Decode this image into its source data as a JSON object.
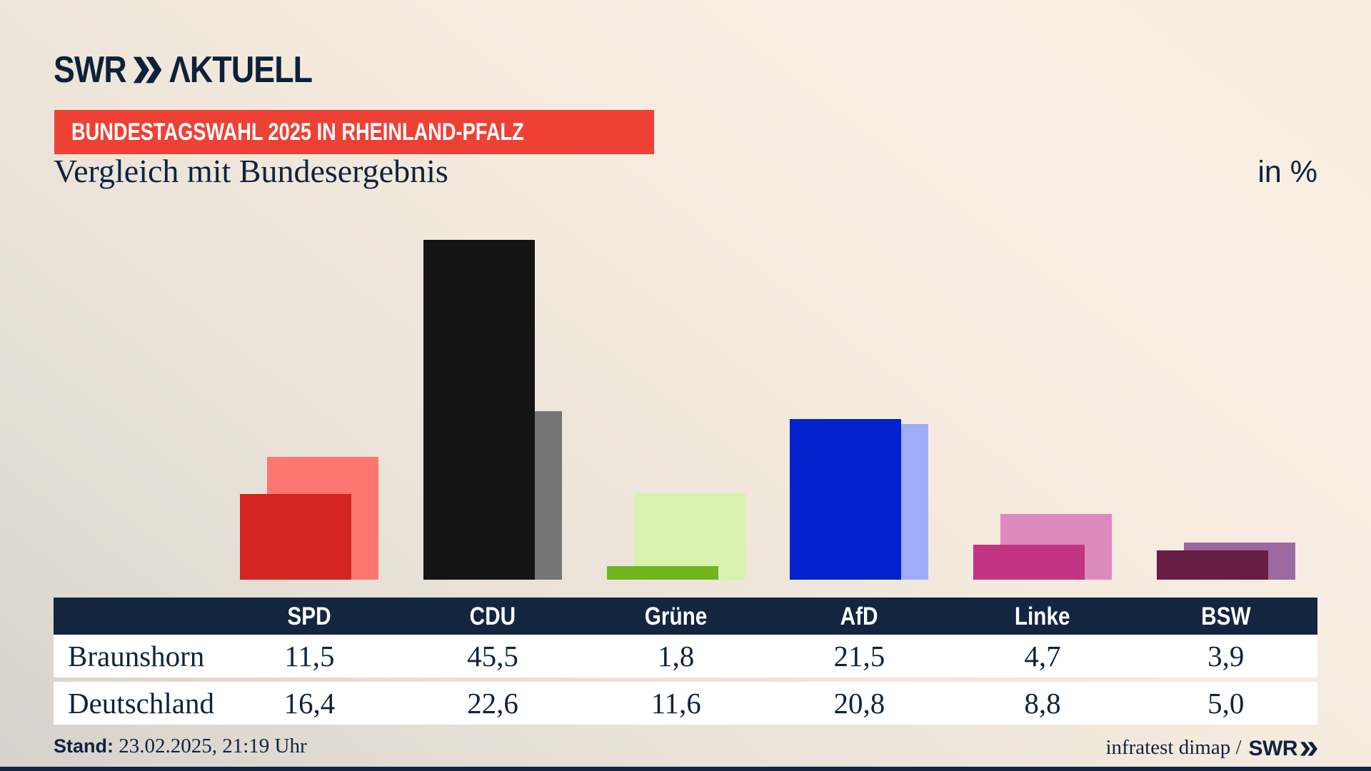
{
  "header": {
    "logo_prefix": "SWR",
    "logo_suffix": "ΛKTUELL",
    "badge": "BUNDESTAGSWAHL 2025 IN RHEINLAND-PFALZ",
    "title": "Vergleich mit Bundesergebnis",
    "unit": "in %"
  },
  "chart_data": {
    "type": "bar",
    "categories": [
      "SPD",
      "CDU",
      "Grüne",
      "AfD",
      "Linke",
      "BSW"
    ],
    "series": [
      {
        "name": "Braunshorn",
        "role": "front",
        "values": [
          11.5,
          45.5,
          1.8,
          21.5,
          4.7,
          3.9
        ],
        "labels": [
          "11,5",
          "45,5",
          "1,8",
          "21,5",
          "4,7",
          "3,9"
        ]
      },
      {
        "name": "Deutschland",
        "role": "back",
        "values": [
          16.4,
          22.6,
          11.6,
          20.8,
          8.8,
          5.0
        ],
        "labels": [
          "16,4",
          "22,6",
          "11,6",
          "20,8",
          "8,8",
          "5,0"
        ]
      }
    ],
    "unit": "in %",
    "ylim": [
      0,
      47.7
    ],
    "grid": false,
    "legend_position": "table-rows",
    "party_colors": [
      {
        "party": "SPD",
        "front": "#d42522",
        "back": "#ff7570"
      },
      {
        "party": "CDU",
        "front": "#141414",
        "back": "#757575"
      },
      {
        "party": "Grüne",
        "front": "#70b51f",
        "back": "#d9f2ae"
      },
      {
        "party": "AfD",
        "front": "#0522cf",
        "back": "#9fadf8"
      },
      {
        "party": "Linke",
        "front": "#c23383",
        "back": "#dd8abf"
      },
      {
        "party": "BSW",
        "front": "#671d43",
        "back": "#9d67a0"
      }
    ]
  },
  "footer": {
    "stand_label": "Stand:",
    "stand_value": " 23.02.2025, 21:19 Uhr",
    "source_text": "infratest dimap /",
    "source_logo": "SWR"
  },
  "colors": {
    "navy": "#10233e",
    "badge_red": "#ee4136",
    "table_header_bg": "#13253f",
    "row_bg": "#ffffff",
    "bottom_bar": "#11253f"
  }
}
